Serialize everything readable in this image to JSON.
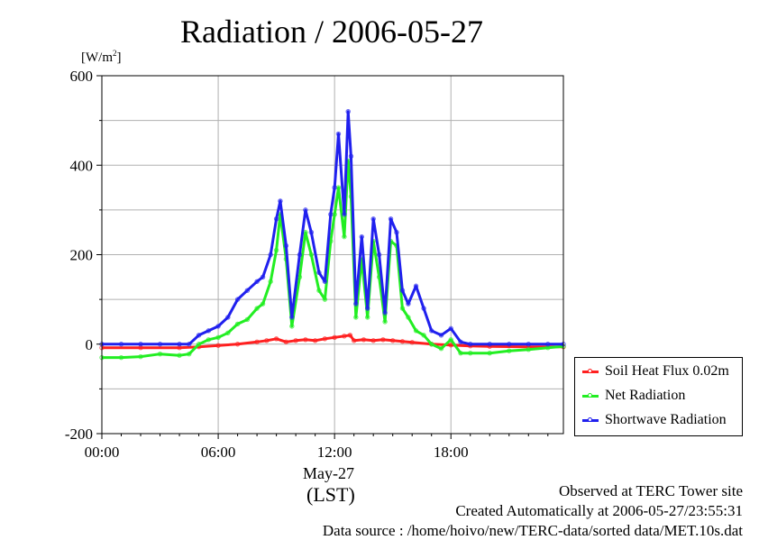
{
  "chart_data": {
    "type": "line",
    "title": "Radiation / 2006-05-27",
    "ylabel_unit_html": "[W/m<sup>2</sup>]",
    "ylabel_unit": "[W/m2]",
    "ylim": [
      -200,
      600
    ],
    "yticks": [
      "-200",
      "0",
      "200",
      "400",
      "600"
    ],
    "xlim": [
      0,
      23.8
    ],
    "xticks": [
      {
        "value": 0,
        "label": "00:00"
      },
      {
        "value": 6,
        "label": "06:00"
      },
      {
        "value": 12,
        "label": "12:00"
      },
      {
        "value": 18,
        "label": "18:00"
      }
    ],
    "xlabel_date": "May-27",
    "xlabel_tz": "(LST)",
    "grid": true,
    "legend_position": "bottom-right outside",
    "series": [
      {
        "name": "Soil Heat Flux 0.02m",
        "color": "#ff2020",
        "x": [
          0,
          2,
          4,
          5,
          6,
          7,
          8,
          8.5,
          9,
          9.5,
          10,
          10.5,
          11,
          11.5,
          12,
          12.5,
          12.8,
          13,
          13.5,
          14,
          14.5,
          15,
          15.5,
          16,
          17,
          18,
          19,
          20,
          22,
          23.8
        ],
        "y": [
          -8,
          -8,
          -8,
          -6,
          -3,
          0,
          5,
          8,
          12,
          5,
          8,
          10,
          8,
          12,
          15,
          18,
          20,
          8,
          10,
          8,
          10,
          8,
          6,
          4,
          0,
          -2,
          -4,
          -5,
          -6,
          -6
        ]
      },
      {
        "name": "Net Radiation",
        "color": "#22ee22",
        "x": [
          0,
          1,
          2,
          3,
          4,
          4.5,
          5,
          5.5,
          6,
          6.5,
          7,
          7.5,
          8,
          8.3,
          8.7,
          9,
          9.2,
          9.5,
          9.8,
          10.2,
          10.5,
          10.8,
          11.2,
          11.5,
          11.8,
          12,
          12.2,
          12.5,
          12.7,
          12.85,
          13.1,
          13.4,
          13.7,
          14,
          14.3,
          14.6,
          14.9,
          15.2,
          15.5,
          15.8,
          16.2,
          16.6,
          17,
          17.5,
          18,
          18.5,
          19,
          20,
          21,
          22,
          23,
          23.8
        ],
        "y": [
          -30,
          -30,
          -28,
          -22,
          -25,
          -22,
          0,
          10,
          15,
          25,
          45,
          55,
          80,
          90,
          140,
          210,
          290,
          190,
          40,
          150,
          250,
          200,
          120,
          100,
          230,
          290,
          350,
          240,
          410,
          330,
          60,
          190,
          60,
          230,
          150,
          50,
          230,
          220,
          80,
          60,
          30,
          20,
          0,
          -10,
          10,
          -20,
          -20,
          -20,
          -15,
          -12,
          -8,
          -5
        ]
      },
      {
        "name": "Shortwave Radiation",
        "color": "#2020ee",
        "x": [
          0,
          1,
          2,
          3,
          4,
          4.5,
          5,
          5.5,
          6,
          6.5,
          7,
          7.5,
          8,
          8.3,
          8.7,
          9,
          9.2,
          9.5,
          9.8,
          10.2,
          10.5,
          10.8,
          11.2,
          11.5,
          11.8,
          12,
          12.2,
          12.5,
          12.7,
          12.85,
          13.1,
          13.4,
          13.7,
          14,
          14.3,
          14.6,
          14.9,
          15.2,
          15.5,
          15.8,
          16.2,
          16.6,
          17,
          17.5,
          18,
          18.5,
          19,
          20,
          21,
          22,
          23,
          23.8
        ],
        "y": [
          0,
          0,
          0,
          0,
          0,
          0,
          20,
          30,
          40,
          60,
          100,
          120,
          140,
          150,
          200,
          280,
          320,
          220,
          60,
          200,
          300,
          250,
          160,
          140,
          290,
          350,
          470,
          290,
          520,
          420,
          90,
          240,
          80,
          280,
          200,
          70,
          280,
          250,
          120,
          90,
          130,
          80,
          30,
          20,
          35,
          5,
          0,
          0,
          0,
          0,
          0,
          0
        ]
      }
    ]
  },
  "footer": {
    "line1": "Observed at TERC Tower site",
    "line2": "Created Automatically at 2006-05-27/23:55:31",
    "line3": "Data source : /home/hoivo/new/TERC-data/sorted  data/MET.10s.dat"
  }
}
